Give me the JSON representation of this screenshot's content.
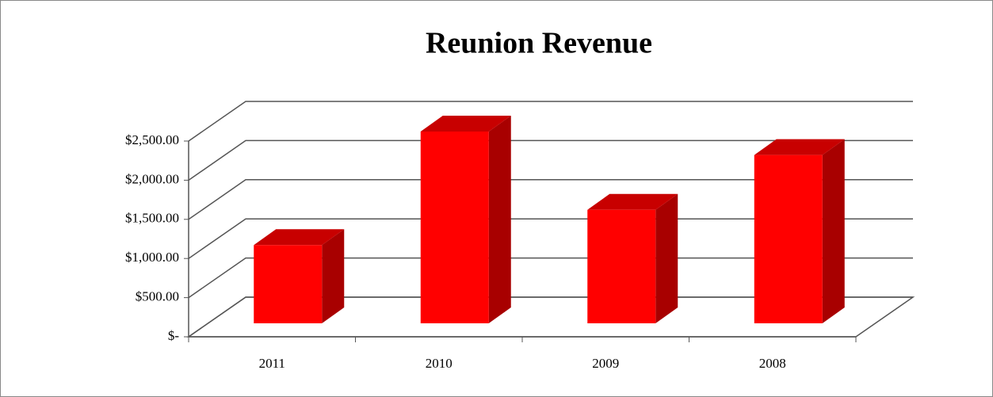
{
  "chart_data": {
    "type": "bar3d",
    "title": "Reunion Revenue",
    "categories": [
      "2011",
      "2010",
      "2009",
      "2008"
    ],
    "values": [
      1000,
      2450,
      1450,
      2150
    ],
    "color": "#ff0000",
    "ylim": [
      0,
      2500
    ],
    "yticks": [
      {
        "value": 0,
        "label": "$-"
      },
      {
        "value": 500,
        "label": "$500.00"
      },
      {
        "value": 1000,
        "label": "$1,000.00"
      },
      {
        "value": 1500,
        "label": "$1,500.00"
      },
      {
        "value": 2000,
        "label": "$2,000.00"
      },
      {
        "value": 2500,
        "label": "$2,500.00"
      }
    ],
    "grid": true
  }
}
